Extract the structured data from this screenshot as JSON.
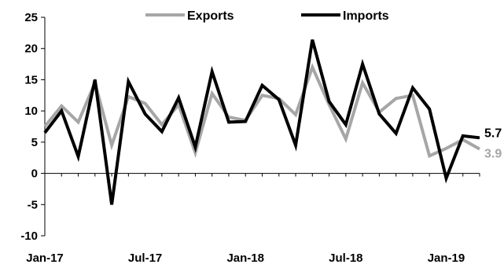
{
  "chart_data": {
    "type": "line",
    "title": "",
    "xlabel": "",
    "ylabel": "",
    "ylim": [
      -10,
      25
    ],
    "yticks": [
      -10,
      -5,
      0,
      5,
      10,
      15,
      20,
      25
    ],
    "x_tick_labels": [
      "Jan-17",
      "Jul-17",
      "Jan-18",
      "Jul-18",
      "Jan-19"
    ],
    "x_tick_every": 6,
    "legend_position": "top",
    "grid": false,
    "series": [
      {
        "name": "Exports",
        "color": "#a6a6a6",
        "end_label": "3.9",
        "values": [
          7.5,
          10.8,
          8.2,
          14.5,
          4.5,
          12.3,
          11.2,
          7.8,
          11.0,
          3.3,
          12.8,
          9.0,
          8.5,
          12.5,
          12.0,
          9.4,
          17.0,
          11.0,
          5.5,
          14.5,
          9.8,
          12.0,
          12.5,
          2.8,
          4.0,
          5.4,
          3.9
        ]
      },
      {
        "name": "Imports",
        "color": "#000000",
        "end_label": "5.7",
        "values": [
          6.5,
          10.0,
          2.7,
          15.0,
          -5.0,
          14.7,
          9.5,
          6.7,
          12.1,
          4.2,
          16.3,
          8.2,
          8.3,
          14.1,
          11.8,
          4.5,
          21.4,
          11.5,
          7.8,
          17.5,
          9.5,
          6.4,
          13.7,
          10.3,
          -0.8,
          6.0,
          5.7
        ]
      }
    ]
  }
}
